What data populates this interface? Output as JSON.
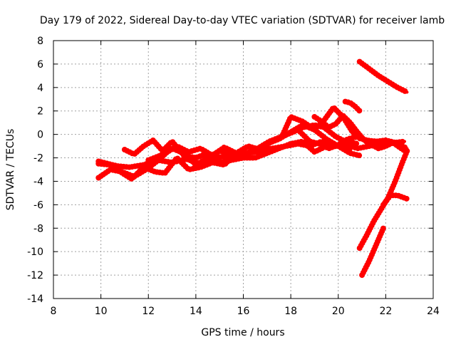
{
  "chart_data": {
    "type": "line",
    "title": "Day 179 of 2022, Sidereal Day-to-day VTEC variation (SDTVAR) for receiver lamb",
    "xlabel": "GPS time / hours",
    "ylabel": "SDTVAR / TECUs",
    "xlim": [
      8,
      24
    ],
    "ylim": [
      -14,
      8
    ],
    "xticks": [
      "8",
      "10",
      "12",
      "14",
      "16",
      "18",
      "20",
      "22",
      "24"
    ],
    "yticks": [
      "-14",
      "-12",
      "-10",
      "-8",
      "-6",
      "-4",
      "-2",
      "0",
      "2",
      "4",
      "6",
      "8"
    ],
    "grid": true,
    "series_color": "#ff0000",
    "series": [
      {
        "name": "trace-1",
        "x": [
          9.9,
          10.3,
          10.7,
          11.2,
          11.8,
          12.4,
          13.0,
          13.6,
          14.2,
          14.8,
          15.4,
          16.0,
          16.6,
          17.2,
          17.8,
          18.3,
          18.8,
          19.3,
          19.8,
          20.3,
          20.8,
          21.3,
          21.8,
          22.3,
          22.8
        ],
        "y": [
          -2.3,
          -2.5,
          -2.7,
          -2.8,
          -2.6,
          -2.2,
          -2.4,
          -2.1,
          -2.5,
          -2.0,
          -1.8,
          -1.6,
          -1.5,
          -1.2,
          -1.0,
          -0.8,
          -1.0,
          -0.6,
          -1.0,
          -0.8,
          -1.2,
          -1.0,
          -0.8,
          -0.7,
          -1.4
        ]
      },
      {
        "name": "trace-2",
        "x": [
          9.9,
          10.4,
          10.9,
          11.4,
          11.9,
          12.3,
          12.8,
          13.2,
          13.7,
          14.2,
          14.7,
          15.2,
          15.7,
          16.2,
          16.7,
          17.2,
          17.6,
          18.0,
          18.5,
          19.0,
          19.4,
          19.8,
          20.2,
          20.6,
          21.0
        ],
        "y": [
          -3.7,
          -3.0,
          -3.2,
          -3.6,
          -3.0,
          -2.4,
          -1.5,
          -1.0,
          -1.5,
          -1.2,
          -1.8,
          -1.1,
          -1.6,
          -1.0,
          -1.3,
          -0.6,
          -0.3,
          1.5,
          1.1,
          0.4,
          1.2,
          2.3,
          1.5,
          0.2,
          -0.5
        ]
      },
      {
        "name": "trace-3",
        "x": [
          9.9,
          10.4,
          10.9,
          11.3,
          11.8,
          12.3,
          12.7,
          13.2,
          13.7,
          14.2,
          14.7,
          15.2,
          15.6,
          16.1,
          16.6,
          17.1,
          17.6,
          18.1,
          18.5,
          19.0,
          19.4,
          19.9,
          20.3,
          20.8
        ],
        "y": [
          -2.5,
          -2.6,
          -3.3,
          -3.8,
          -2.8,
          -3.2,
          -3.3,
          -2.0,
          -3.0,
          -2.8,
          -2.4,
          -2.6,
          -1.8,
          -1.6,
          -1.2,
          -0.6,
          -0.2,
          0.2,
          0.6,
          0.8,
          0.6,
          -0.2,
          -0.6,
          -0.8
        ]
      },
      {
        "name": "trace-4",
        "x": [
          11.0,
          11.4,
          11.8,
          12.2,
          12.6,
          13.0,
          13.5,
          14.0,
          14.5,
          15.0,
          15.5,
          16.0,
          16.5,
          17.0,
          17.5,
          18.0,
          18.5,
          19.0,
          19.5,
          20.0,
          20.5
        ],
        "y": [
          -1.3,
          -1.7,
          -1.0,
          -0.5,
          -1.4,
          -0.6,
          -1.8,
          -2.0,
          -1.6,
          -2.4,
          -2.2,
          -2.0,
          -2.0,
          -1.6,
          -1.2,
          -0.8,
          -0.6,
          -1.5,
          -1.0,
          -1.0,
          -1.3
        ]
      },
      {
        "name": "trace-5",
        "x": [
          12.0,
          12.5,
          13.0,
          13.5,
          14.0,
          14.5,
          15.0,
          15.5,
          16.0,
          16.5,
          17.0,
          17.5,
          18.0,
          18.5,
          19.0,
          19.5,
          20.0,
          20.5,
          20.9
        ],
        "y": [
          -2.2,
          -1.8,
          -1.2,
          -1.6,
          -2.6,
          -2.0,
          -1.4,
          -1.6,
          -1.8,
          -1.4,
          -0.8,
          -0.4,
          0.2,
          0.8,
          0.4,
          -0.4,
          -1.0,
          -1.6,
          -1.8
        ]
      },
      {
        "name": "trace-6",
        "x": [
          18.4,
          18.8,
          19.2,
          19.6,
          20.0,
          20.4,
          20.8,
          21.2,
          21.6,
          22.0,
          22.4,
          22.8
        ],
        "y": [
          0.2,
          -0.6,
          -0.8,
          -1.2,
          -0.9,
          -0.4,
          -0.2,
          -0.5,
          -0.6,
          -0.5,
          -0.7,
          -0.6
        ]
      },
      {
        "name": "trace-7",
        "x": [
          19.0,
          19.3,
          19.6,
          19.9,
          20.2,
          20.5,
          20.8,
          21.1,
          21.4,
          21.7,
          22.0,
          22.3,
          22.6,
          22.9
        ],
        "y": [
          1.5,
          1.1,
          0.6,
          0.9,
          1.6,
          1.0,
          0.2,
          -0.5,
          -0.9,
          -1.2,
          -1.0,
          -0.7,
          -0.9,
          -1.2
        ]
      },
      {
        "name": "trace-8",
        "x": [
          20.3,
          20.5,
          20.7,
          20.9
        ],
        "y": [
          2.8,
          2.7,
          2.4,
          2.0
        ]
      },
      {
        "name": "trace-9",
        "x": [
          20.9,
          21.3,
          21.7,
          22.1,
          22.5,
          22.9
        ],
        "y": [
          6.2,
          5.6,
          5.0,
          4.5,
          4.0,
          3.6
        ]
      },
      {
        "name": "trace-10",
        "x": [
          20.9,
          21.2,
          21.5,
          21.8,
          22.1,
          22.4,
          22.7,
          22.9
        ],
        "y": [
          -9.7,
          -8.6,
          -7.4,
          -6.4,
          -5.4,
          -4.0,
          -2.4,
          -1.4
        ]
      },
      {
        "name": "trace-11",
        "x": [
          21.0,
          21.3,
          21.6,
          21.9
        ],
        "y": [
          -12.0,
          -10.8,
          -9.4,
          -8.0
        ]
      },
      {
        "name": "trace-12",
        "x": [
          21.9,
          22.2,
          22.5,
          22.9
        ],
        "y": [
          -6.0,
          -5.2,
          -5.2,
          -5.5
        ]
      }
    ]
  }
}
